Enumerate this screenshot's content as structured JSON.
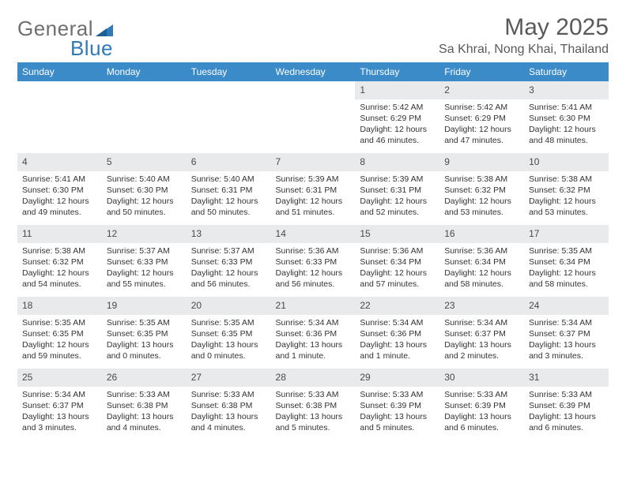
{
  "logo": {
    "text1": "General",
    "text2": "Blue"
  },
  "title": "May 2025",
  "location": "Sa Khrai, Nong Khai, Thailand",
  "colors": {
    "header_bg": "#3b8bc8",
    "header_text": "#ffffff",
    "daynum_bg": "#e8eaec",
    "page_bg": "#ffffff",
    "logo_gray": "#6f6f6f",
    "logo_blue": "#2f7ab8",
    "text": "#333333"
  },
  "typography": {
    "title_fontsize": 30,
    "location_fontsize": 16,
    "dayheader_fontsize": 12,
    "body_fontsize": 10.5
  },
  "day_headers": [
    "Sunday",
    "Monday",
    "Tuesday",
    "Wednesday",
    "Thursday",
    "Friday",
    "Saturday"
  ],
  "weeks": [
    [
      {
        "n": "",
        "sr": "",
        "ss": "",
        "dl": ""
      },
      {
        "n": "",
        "sr": "",
        "ss": "",
        "dl": ""
      },
      {
        "n": "",
        "sr": "",
        "ss": "",
        "dl": ""
      },
      {
        "n": "",
        "sr": "",
        "ss": "",
        "dl": ""
      },
      {
        "n": "1",
        "sr": "Sunrise: 5:42 AM",
        "ss": "Sunset: 6:29 PM",
        "dl": "Daylight: 12 hours and 46 minutes."
      },
      {
        "n": "2",
        "sr": "Sunrise: 5:42 AM",
        "ss": "Sunset: 6:29 PM",
        "dl": "Daylight: 12 hours and 47 minutes."
      },
      {
        "n": "3",
        "sr": "Sunrise: 5:41 AM",
        "ss": "Sunset: 6:30 PM",
        "dl": "Daylight: 12 hours and 48 minutes."
      }
    ],
    [
      {
        "n": "4",
        "sr": "Sunrise: 5:41 AM",
        "ss": "Sunset: 6:30 PM",
        "dl": "Daylight: 12 hours and 49 minutes."
      },
      {
        "n": "5",
        "sr": "Sunrise: 5:40 AM",
        "ss": "Sunset: 6:30 PM",
        "dl": "Daylight: 12 hours and 50 minutes."
      },
      {
        "n": "6",
        "sr": "Sunrise: 5:40 AM",
        "ss": "Sunset: 6:31 PM",
        "dl": "Daylight: 12 hours and 50 minutes."
      },
      {
        "n": "7",
        "sr": "Sunrise: 5:39 AM",
        "ss": "Sunset: 6:31 PM",
        "dl": "Daylight: 12 hours and 51 minutes."
      },
      {
        "n": "8",
        "sr": "Sunrise: 5:39 AM",
        "ss": "Sunset: 6:31 PM",
        "dl": "Daylight: 12 hours and 52 minutes."
      },
      {
        "n": "9",
        "sr": "Sunrise: 5:38 AM",
        "ss": "Sunset: 6:32 PM",
        "dl": "Daylight: 12 hours and 53 minutes."
      },
      {
        "n": "10",
        "sr": "Sunrise: 5:38 AM",
        "ss": "Sunset: 6:32 PM",
        "dl": "Daylight: 12 hours and 53 minutes."
      }
    ],
    [
      {
        "n": "11",
        "sr": "Sunrise: 5:38 AM",
        "ss": "Sunset: 6:32 PM",
        "dl": "Daylight: 12 hours and 54 minutes."
      },
      {
        "n": "12",
        "sr": "Sunrise: 5:37 AM",
        "ss": "Sunset: 6:33 PM",
        "dl": "Daylight: 12 hours and 55 minutes."
      },
      {
        "n": "13",
        "sr": "Sunrise: 5:37 AM",
        "ss": "Sunset: 6:33 PM",
        "dl": "Daylight: 12 hours and 56 minutes."
      },
      {
        "n": "14",
        "sr": "Sunrise: 5:36 AM",
        "ss": "Sunset: 6:33 PM",
        "dl": "Daylight: 12 hours and 56 minutes."
      },
      {
        "n": "15",
        "sr": "Sunrise: 5:36 AM",
        "ss": "Sunset: 6:34 PM",
        "dl": "Daylight: 12 hours and 57 minutes."
      },
      {
        "n": "16",
        "sr": "Sunrise: 5:36 AM",
        "ss": "Sunset: 6:34 PM",
        "dl": "Daylight: 12 hours and 58 minutes."
      },
      {
        "n": "17",
        "sr": "Sunrise: 5:35 AM",
        "ss": "Sunset: 6:34 PM",
        "dl": "Daylight: 12 hours and 58 minutes."
      }
    ],
    [
      {
        "n": "18",
        "sr": "Sunrise: 5:35 AM",
        "ss": "Sunset: 6:35 PM",
        "dl": "Daylight: 12 hours and 59 minutes."
      },
      {
        "n": "19",
        "sr": "Sunrise: 5:35 AM",
        "ss": "Sunset: 6:35 PM",
        "dl": "Daylight: 13 hours and 0 minutes."
      },
      {
        "n": "20",
        "sr": "Sunrise: 5:35 AM",
        "ss": "Sunset: 6:35 PM",
        "dl": "Daylight: 13 hours and 0 minutes."
      },
      {
        "n": "21",
        "sr": "Sunrise: 5:34 AM",
        "ss": "Sunset: 6:36 PM",
        "dl": "Daylight: 13 hours and 1 minute."
      },
      {
        "n": "22",
        "sr": "Sunrise: 5:34 AM",
        "ss": "Sunset: 6:36 PM",
        "dl": "Daylight: 13 hours and 1 minute."
      },
      {
        "n": "23",
        "sr": "Sunrise: 5:34 AM",
        "ss": "Sunset: 6:37 PM",
        "dl": "Daylight: 13 hours and 2 minutes."
      },
      {
        "n": "24",
        "sr": "Sunrise: 5:34 AM",
        "ss": "Sunset: 6:37 PM",
        "dl": "Daylight: 13 hours and 3 minutes."
      }
    ],
    [
      {
        "n": "25",
        "sr": "Sunrise: 5:34 AM",
        "ss": "Sunset: 6:37 PM",
        "dl": "Daylight: 13 hours and 3 minutes."
      },
      {
        "n": "26",
        "sr": "Sunrise: 5:33 AM",
        "ss": "Sunset: 6:38 PM",
        "dl": "Daylight: 13 hours and 4 minutes."
      },
      {
        "n": "27",
        "sr": "Sunrise: 5:33 AM",
        "ss": "Sunset: 6:38 PM",
        "dl": "Daylight: 13 hours and 4 minutes."
      },
      {
        "n": "28",
        "sr": "Sunrise: 5:33 AM",
        "ss": "Sunset: 6:38 PM",
        "dl": "Daylight: 13 hours and 5 minutes."
      },
      {
        "n": "29",
        "sr": "Sunrise: 5:33 AM",
        "ss": "Sunset: 6:39 PM",
        "dl": "Daylight: 13 hours and 5 minutes."
      },
      {
        "n": "30",
        "sr": "Sunrise: 5:33 AM",
        "ss": "Sunset: 6:39 PM",
        "dl": "Daylight: 13 hours and 6 minutes."
      },
      {
        "n": "31",
        "sr": "Sunrise: 5:33 AM",
        "ss": "Sunset: 6:39 PM",
        "dl": "Daylight: 13 hours and 6 minutes."
      }
    ]
  ]
}
